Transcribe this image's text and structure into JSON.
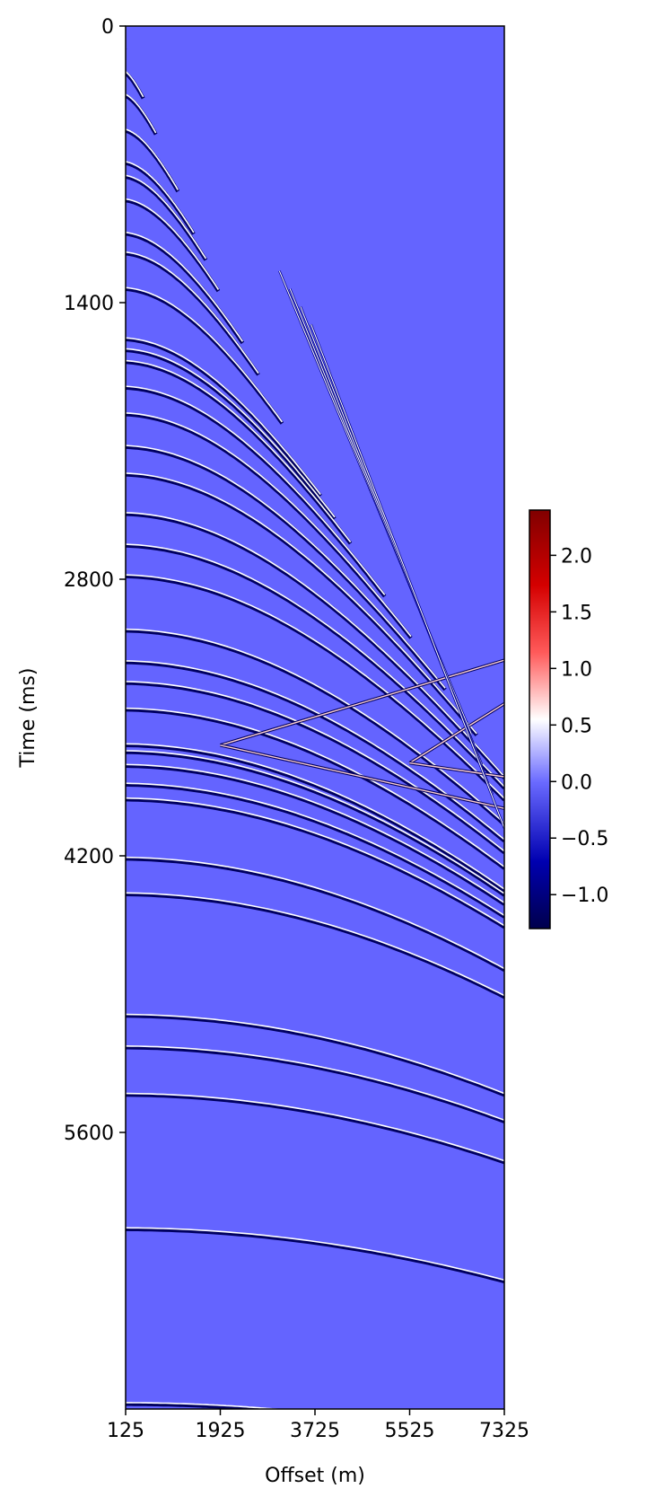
{
  "chart_data": {
    "type": "heatmap",
    "title": "",
    "xlabel": "Offset (m)",
    "ylabel": "Time (ms)",
    "xticks": [
      125,
      1925,
      3725,
      5525,
      7325
    ],
    "yticks": [
      0,
      1400,
      2800,
      4200,
      5600
    ],
    "xlim": [
      125,
      7325
    ],
    "ylim": [
      7000,
      0
    ],
    "colorbar": {
      "ticks": [
        -1.0,
        -0.5,
        0.0,
        0.5,
        1.0,
        1.5,
        2.0
      ],
      "tick_labels": [
        "−1.0",
        "−0.5",
        "0.0",
        "0.5",
        "1.0",
        "1.5",
        "2.0"
      ],
      "range": [
        -1.3,
        2.4
      ],
      "colormap": "seismic",
      "colors": {
        "low": "#00004c",
        "mid": "#ffffff",
        "high": "#800000",
        "background": "#6464ff"
      }
    },
    "events": [
      {
        "t0": 85,
        "kind": "reflection",
        "x_end": 125
      },
      {
        "t0": 225,
        "kind": "reflection",
        "x_end": 460
      },
      {
        "t0": 345,
        "kind": "reflection",
        "x_end": 700
      },
      {
        "t0": 525,
        "kind": "reflection",
        "x_end": 1120
      },
      {
        "t0": 690,
        "kind": "reflection",
        "x_end": 1420
      },
      {
        "t0": 760,
        "kind": "reflection",
        "x_end": 1650
      },
      {
        "t0": 880,
        "kind": "reflection",
        "x_end": 1890
      },
      {
        "t0": 1050,
        "kind": "reflection",
        "x_end": 2350
      },
      {
        "t0": 1150,
        "kind": "reflection",
        "x_end": 2650
      },
      {
        "t0": 1330,
        "kind": "reflection",
        "x_end": 3100
      },
      {
        "t0": 1585,
        "kind": "reflection",
        "x_end": 3830
      },
      {
        "t0": 1640,
        "kind": "reflection",
        "x_end": 4100
      },
      {
        "t0": 1700,
        "kind": "reflection",
        "x_end": 4400
      },
      {
        "t0": 1830,
        "kind": "reflection",
        "x_end": 5050
      },
      {
        "t0": 1965,
        "kind": "reflection",
        "x_end": 5550
      },
      {
        "t0": 2130,
        "kind": "reflection",
        "x_end": 6200
      },
      {
        "t0": 2270,
        "kind": "reflection",
        "x_end": 6800
      },
      {
        "t0": 2470,
        "kind": "reflection",
        "x_end": 7325
      },
      {
        "t0": 2630,
        "kind": "reflection",
        "x_end": 7325
      },
      {
        "t0": 2785,
        "kind": "reflection",
        "x_end": 7325
      },
      {
        "t0": 3060,
        "kind": "reflection",
        "x_end": 7325
      },
      {
        "t0": 3220,
        "kind": "reflection",
        "x_end": 7325
      },
      {
        "t0": 3325,
        "kind": "reflection",
        "x_end": 7325
      },
      {
        "t0": 3460,
        "kind": "reflection",
        "x_end": 7325
      },
      {
        "t0": 3640,
        "kind": "reflection",
        "x_end": 7325
      },
      {
        "t0": 3675,
        "kind": "reflection",
        "x_end": 7325
      },
      {
        "t0": 3745,
        "kind": "reflection",
        "x_end": 7325
      },
      {
        "t0": 3840,
        "kind": "reflection",
        "x_end": 7325
      },
      {
        "t0": 3915,
        "kind": "reflection",
        "x_end": 7325
      },
      {
        "t0": 4215,
        "kind": "reflection",
        "x_end": 7325
      },
      {
        "t0": 4395,
        "kind": "reflection",
        "x_end": 7325
      },
      {
        "t0": 5010,
        "kind": "reflection",
        "x_end": 7325
      },
      {
        "t0": 5170,
        "kind": "reflection",
        "x_end": 7325
      },
      {
        "t0": 5410,
        "kind": "reflection",
        "x_end": 7325
      },
      {
        "t0": 6090,
        "kind": "reflection",
        "x_end": 7325
      },
      {
        "t0": 6975,
        "kind": "reflection",
        "x_end": 3400
      }
    ],
    "crossing_events": [
      {
        "x": [
          1925,
          7325
        ],
        "t": [
          3640,
          3210
        ],
        "kind": "crossing"
      },
      {
        "x": [
          1925,
          7325
        ],
        "t": [
          3640,
          3960
        ],
        "kind": "crossing"
      },
      {
        "x": [
          5525,
          7325
        ],
        "t": [
          3730,
          3430
        ],
        "kind": "crossing"
      },
      {
        "x": [
          5525,
          7325
        ],
        "t": [
          3730,
          3800
        ],
        "kind": "crossing"
      }
    ],
    "linear_events": [
      {
        "x": [
          3050,
          6700
        ],
        "t": [
          1240,
          3585
        ]
      },
      {
        "x": [
          3250,
          6900
        ],
        "t": [
          1330,
          3740
        ]
      },
      {
        "x": [
          3450,
          7100
        ],
        "t": [
          1420,
          3890
        ]
      },
      {
        "x": [
          3650,
          7325
        ],
        "t": [
          1510,
          4060
        ]
      }
    ]
  }
}
